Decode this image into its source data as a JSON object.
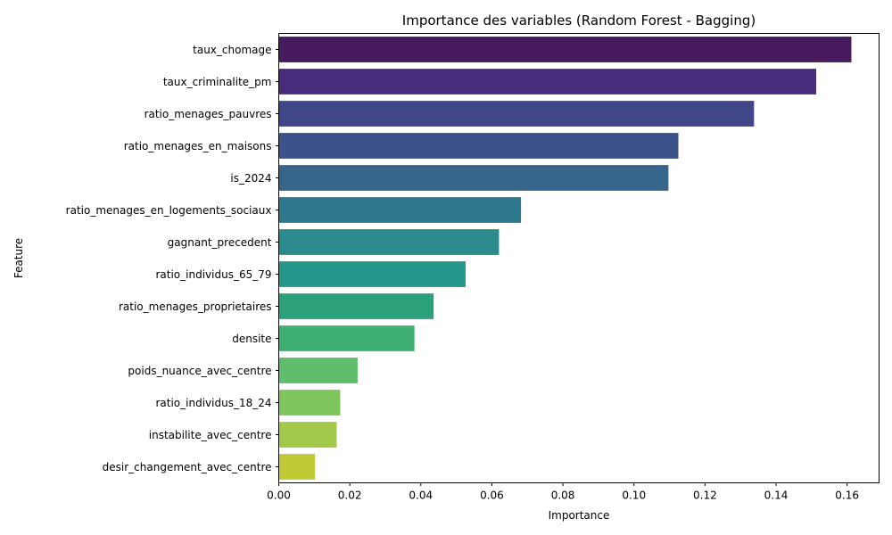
{
  "chart_data": {
    "type": "bar",
    "orientation": "horizontal",
    "title": "Importance des variables (Random Forest - Bagging)",
    "xlabel": "Importance",
    "ylabel": "Feature",
    "xlim": [
      0,
      0.169
    ],
    "xticks": [
      0.0,
      0.02,
      0.04,
      0.06,
      0.08,
      0.1,
      0.12,
      0.14,
      0.16
    ],
    "xtick_labels": [
      "0.00",
      "0.02",
      "0.04",
      "0.06",
      "0.08",
      "0.10",
      "0.12",
      "0.14",
      "0.16"
    ],
    "grid": false,
    "palette": "viridis",
    "categories": [
      "taux_chomage",
      "taux_criminalite_pm",
      "ratio_menages_pauvres",
      "ratio_menages_en_maisons",
      "is_2024",
      "ratio_menages_en_logements_sociaux",
      "gagnant_precedent",
      "ratio_individus_65_79",
      "ratio_menages_proprietaires",
      "densite",
      "poids_nuance_avec_centre",
      "ratio_individus_18_24",
      "instabilite_avec_centre",
      "desir_changement_avec_centre"
    ],
    "values": [
      0.1612,
      0.1513,
      0.1338,
      0.1125,
      0.1097,
      0.0682,
      0.062,
      0.0526,
      0.0436,
      0.0382,
      0.0222,
      0.0173,
      0.0163,
      0.0102
    ],
    "colors": [
      "#481b5e",
      "#472d7b",
      "#404688",
      "#3b528b",
      "#38668b",
      "#2e798d",
      "#2a8a8c",
      "#23988b",
      "#2ca07b",
      "#40b072",
      "#5fbe6b",
      "#7fc55e",
      "#a3c84b",
      "#bfca36"
    ]
  }
}
